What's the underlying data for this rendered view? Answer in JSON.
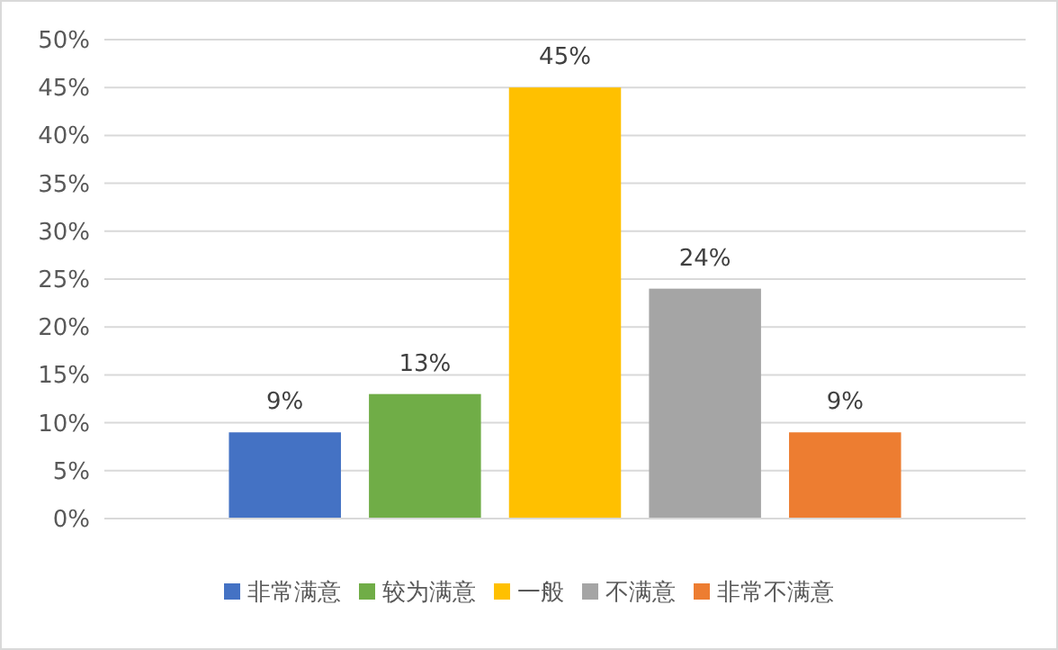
{
  "chart_data": {
    "type": "bar",
    "categories": [
      null,
      null,
      null,
      null,
      null
    ],
    "series": [
      {
        "name": "非常满意",
        "color": "#4472c4",
        "values": [
          9,
          null,
          null,
          null,
          null
        ],
        "value_labels": [
          "9%",
          null,
          null,
          null,
          null
        ]
      },
      {
        "name": "较为满意",
        "color": "#70ad47",
        "values": [
          null,
          13,
          null,
          null,
          null
        ],
        "value_labels": [
          null,
          "13%",
          null,
          null,
          null
        ]
      },
      {
        "name": "一般",
        "color": "#ffc000",
        "values": [
          null,
          null,
          45,
          null,
          null
        ],
        "value_labels": [
          null,
          null,
          "45%",
          null,
          null
        ]
      },
      {
        "name": "不满意",
        "color": "#a5a5a5",
        "values": [
          null,
          null,
          null,
          24,
          null
        ],
        "value_labels": [
          null,
          null,
          null,
          "24%",
          null
        ]
      },
      {
        "name": "非常不满意",
        "color": "#ed7d31",
        "values": [
          null,
          null,
          null,
          null,
          9
        ],
        "value_labels": [
          null,
          null,
          null,
          null,
          "9%"
        ]
      }
    ],
    "ylim": [
      0,
      50
    ],
    "yticks": [
      {
        "value": 0,
        "label": "0%"
      },
      {
        "value": 5,
        "label": "5%"
      },
      {
        "value": 10,
        "label": "10%"
      },
      {
        "value": 15,
        "label": "15%"
      },
      {
        "value": 20,
        "label": "20%"
      },
      {
        "value": 25,
        "label": "25%"
      },
      {
        "value": 30,
        "label": "30%"
      },
      {
        "value": 35,
        "label": "35%"
      },
      {
        "value": 40,
        "label": "40%"
      },
      {
        "value": 45,
        "label": "45%"
      },
      {
        "value": 50,
        "label": "50%"
      }
    ],
    "grid": "y",
    "legend": "bottom",
    "tick_labels": "y"
  }
}
